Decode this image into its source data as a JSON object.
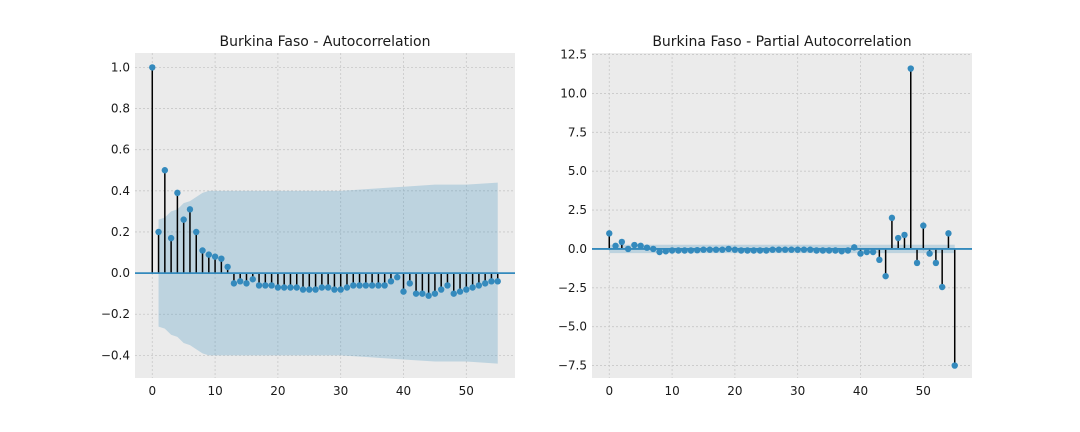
{
  "chart_data": [
    {
      "type": "stem",
      "title": "Burkina Faso - Autocorrelation",
      "xlabel": "",
      "ylabel": "",
      "xlim": [
        -2.75,
        57.75
      ],
      "ylim": [
        -0.51,
        1.07
      ],
      "xticks": [
        0,
        10,
        20,
        30,
        40,
        50
      ],
      "yticks": [
        -0.4,
        -0.2,
        0.0,
        0.2,
        0.4,
        0.6,
        0.8,
        1.0
      ],
      "ytick_labels": [
        "−0.4",
        "−0.2",
        "0.0",
        "0.2",
        "0.4",
        "0.6",
        "0.8",
        "1.0"
      ],
      "grid": true,
      "lags": [
        0,
        1,
        2,
        3,
        4,
        5,
        6,
        7,
        8,
        9,
        10,
        11,
        12,
        13,
        14,
        15,
        16,
        17,
        18,
        19,
        20,
        21,
        22,
        23,
        24,
        25,
        26,
        27,
        28,
        29,
        30,
        31,
        32,
        33,
        34,
        35,
        36,
        37,
        38,
        39,
        40,
        41,
        42,
        43,
        44,
        45,
        46,
        47,
        48,
        49,
        50,
        51,
        52,
        53,
        54,
        55
      ],
      "values": [
        1.0,
        0.2,
        0.5,
        0.17,
        0.39,
        0.26,
        0.31,
        0.2,
        0.11,
        0.09,
        0.08,
        0.07,
        0.03,
        -0.05,
        -0.04,
        -0.05,
        -0.03,
        -0.06,
        -0.06,
        -0.06,
        -0.07,
        -0.07,
        -0.07,
        -0.07,
        -0.08,
        -0.08,
        -0.08,
        -0.07,
        -0.07,
        -0.08,
        -0.08,
        -0.07,
        -0.06,
        -0.06,
        -0.06,
        -0.06,
        -0.06,
        -0.06,
        -0.04,
        -0.02,
        -0.09,
        -0.05,
        -0.1,
        -0.1,
        -0.11,
        -0.1,
        -0.08,
        -0.06,
        -0.1,
        -0.09,
        -0.08,
        -0.07,
        -0.06,
        -0.05,
        -0.04,
        -0.04
      ],
      "confidence_band": {
        "lags": [
          1,
          2,
          3,
          4,
          5,
          6,
          7,
          8,
          9,
          10,
          12,
          15,
          20,
          25,
          30,
          35,
          40,
          45,
          50,
          55
        ],
        "upper": [
          0.26,
          0.27,
          0.3,
          0.31,
          0.34,
          0.35,
          0.37,
          0.39,
          0.4,
          0.4,
          0.4,
          0.4,
          0.4,
          0.4,
          0.4,
          0.41,
          0.42,
          0.43,
          0.43,
          0.44
        ],
        "lower": [
          -0.26,
          -0.27,
          -0.3,
          -0.31,
          -0.34,
          -0.35,
          -0.37,
          -0.39,
          -0.4,
          -0.4,
          -0.4,
          -0.4,
          -0.4,
          -0.4,
          -0.4,
          -0.41,
          -0.42,
          -0.43,
          -0.43,
          -0.44
        ]
      }
    },
    {
      "type": "stem",
      "title": "Burkina Faso - Partial Autocorrelation",
      "xlabel": "",
      "ylabel": "",
      "xlim": [
        -2.75,
        57.75
      ],
      "ylim": [
        -8.3,
        12.6
      ],
      "xticks": [
        0,
        10,
        20,
        30,
        40,
        50
      ],
      "yticks": [
        -7.5,
        -5.0,
        -2.5,
        0.0,
        2.5,
        5.0,
        7.5,
        10.0,
        12.5
      ],
      "ytick_labels": [
        "−7.5",
        "−5.0",
        "−2.5",
        "0.0",
        "2.5",
        "5.0",
        "7.5",
        "10.0",
        "12.5"
      ],
      "grid": true,
      "lags": [
        0,
        1,
        2,
        3,
        4,
        5,
        6,
        7,
        8,
        9,
        10,
        11,
        12,
        13,
        14,
        15,
        16,
        17,
        18,
        19,
        20,
        21,
        22,
        23,
        24,
        25,
        26,
        27,
        28,
        29,
        30,
        31,
        32,
        33,
        34,
        35,
        36,
        37,
        38,
        39,
        40,
        41,
        42,
        43,
        44,
        45,
        46,
        47,
        48,
        49,
        50,
        51,
        52,
        53,
        54,
        55
      ],
      "values": [
        1.0,
        0.2,
        0.45,
        0.0,
        0.25,
        0.2,
        0.08,
        0.0,
        -0.2,
        -0.15,
        -0.1,
        -0.1,
        -0.1,
        -0.1,
        -0.08,
        -0.05,
        -0.05,
        -0.05,
        -0.05,
        0.0,
        -0.05,
        -0.1,
        -0.1,
        -0.1,
        -0.1,
        -0.1,
        -0.05,
        -0.05,
        -0.05,
        -0.05,
        -0.05,
        -0.05,
        -0.05,
        -0.1,
        -0.1,
        -0.1,
        -0.1,
        -0.15,
        -0.1,
        0.1,
        -0.3,
        -0.2,
        -0.2,
        -0.7,
        -1.75,
        2.0,
        0.7,
        0.9,
        11.6,
        -0.9,
        1.5,
        -0.3,
        -0.9,
        -2.45,
        1.0,
        -7.5
      ],
      "confidence_band": {
        "lags": [
          0,
          55
        ],
        "upper": [
          0.27,
          0.27
        ],
        "lower": [
          -0.27,
          -0.27
        ]
      }
    }
  ],
  "colors": {
    "axes_bg": "#ebebeb",
    "grid": "#c8c8c8",
    "stem": "#000000",
    "marker": "#348abd",
    "zero_line": "#348abd",
    "band": "#348abd",
    "text": "#1a1a1a"
  }
}
